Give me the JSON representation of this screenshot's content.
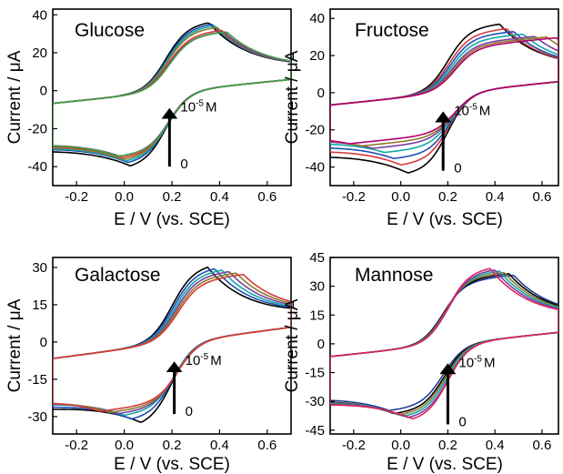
{
  "chart_data": [
    {
      "type": "line",
      "title": "Glucose",
      "xlabel": "E / V (vs. SCE)",
      "ylabel": "Current / μA",
      "xlim": [
        -0.3,
        0.7
      ],
      "ylim": [
        -50,
        43
      ],
      "xticks": [
        -0.2,
        0.0,
        0.2,
        0.4,
        0.6
      ],
      "xtick_labels": [
        "-0.2",
        "0.0",
        "0.2",
        "0.4",
        "0.6"
      ],
      "yticks": [
        -40,
        -20,
        0,
        20,
        40
      ],
      "ytick_labels": [
        "-40",
        "-20",
        "0",
        "20",
        "40"
      ],
      "annotations": {
        "top": "10",
        "top_sup": "-5",
        "top_unit": "M",
        "bottom": "0"
      },
      "arrow": {
        "x": 0.19,
        "y_from": -40,
        "y_to": -12
      },
      "legend": "none",
      "grid": false,
      "series": [
        {
          "color": "#000000",
          "e0": 0.175,
          "ipa": 36,
          "ipc": -39,
          "ea": 0.355,
          "ec": 0.025
        },
        {
          "color": "#1f4fb5",
          "e0": 0.178,
          "ipa": 35,
          "ipc": -37,
          "ea": 0.37,
          "ec": 0.015
        },
        {
          "color": "#13a8a8",
          "e0": 0.18,
          "ipa": 34,
          "ipc": -36,
          "ea": 0.38,
          "ec": 0.005
        },
        {
          "color": "#8c7a2a",
          "e0": 0.182,
          "ipa": 33,
          "ipc": -35,
          "ea": 0.39,
          "ec": -0.005
        },
        {
          "color": "#d63a3a",
          "e0": 0.185,
          "ipa": 31,
          "ipc": -34,
          "ea": 0.41,
          "ec": -0.01
        },
        {
          "color": "#7a3fa0",
          "e0": 0.187,
          "ipa": 30,
          "ipc": -33,
          "ea": 0.42,
          "ec": -0.02
        },
        {
          "color": "#3fa03f",
          "e0": 0.19,
          "ipa": 30,
          "ipc": -33,
          "ea": 0.43,
          "ec": -0.025
        }
      ]
    },
    {
      "type": "line",
      "title": "Fructose",
      "xlabel": "E / V (vs. SCE)",
      "ylabel": "Current / μA",
      "xlim": [
        -0.3,
        0.67
      ],
      "ylim": [
        -50,
        45
      ],
      "xticks": [
        -0.2,
        0.0,
        0.2,
        0.4,
        0.6
      ],
      "xtick_labels": [
        "-0.2",
        "0.0",
        "0.2",
        "0.4",
        "0.6"
      ],
      "yticks": [
        -40,
        -20,
        0,
        20,
        40
      ],
      "ytick_labels": [
        "-40",
        "-20",
        "0",
        "20",
        "40"
      ],
      "annotations": {
        "top": "10",
        "top_sup": "-5",
        "top_unit": "M",
        "bottom": "0"
      },
      "arrow": {
        "x": 0.18,
        "y_from": -42,
        "y_to": -13
      },
      "legend": "none",
      "grid": false,
      "series": [
        {
          "color": "#000000",
          "e0": 0.2,
          "ipa": 36,
          "ipc": -43,
          "ea": 0.42,
          "ec": 0.03
        },
        {
          "color": "#d63a3a",
          "e0": 0.205,
          "ipa": 33,
          "ipc": -38,
          "ea": 0.45,
          "ec": 0.0
        },
        {
          "color": "#1f4fb5",
          "e0": 0.21,
          "ipa": 31,
          "ipc": -34,
          "ea": 0.48,
          "ec": -0.03
        },
        {
          "color": "#13a8a8",
          "e0": 0.215,
          "ipa": 29,
          "ipc": -30,
          "ea": 0.52,
          "ec": -0.07
        },
        {
          "color": "#7a3fa0",
          "e0": 0.22,
          "ipa": 27,
          "ipc": -27,
          "ea": 0.57,
          "ec": -0.12
        },
        {
          "color": "#8c7a2a",
          "e0": 0.225,
          "ipa": 26,
          "ipc": -25,
          "ea": 0.62,
          "ec": -0.17
        },
        {
          "color": "#b3006b",
          "e0": 0.23,
          "ipa": 25,
          "ipc": -23,
          "ea": 0.66,
          "ec": -0.22
        }
      ]
    },
    {
      "type": "line",
      "title": "Galactose",
      "xlabel": "E / V (vs. SCE)",
      "ylabel": "Current / μA",
      "xlim": [
        -0.3,
        0.7
      ],
      "ylim": [
        -37,
        34
      ],
      "xticks": [
        -0.2,
        0.0,
        0.2,
        0.4,
        0.6
      ],
      "xtick_labels": [
        "-0.2",
        "0.0",
        "0.2",
        "0.4",
        "0.6"
      ],
      "yticks": [
        -30,
        -15,
        0,
        15,
        30
      ],
      "ytick_labels": [
        "-30",
        "-15",
        "0",
        "15",
        "30"
      ],
      "annotations": {
        "top": "10",
        "top_sup": "-5",
        "top_unit": "M",
        "bottom": "0"
      },
      "arrow": {
        "x": 0.21,
        "y_from": -29,
        "y_to": -10
      },
      "legend": "none",
      "grid": false,
      "series": [
        {
          "color": "#000000",
          "e0": 0.2,
          "ipa": 30,
          "ipc": -32,
          "ea": 0.35,
          "ec": 0.07
        },
        {
          "color": "#1f4fb5",
          "e0": 0.205,
          "ipa": 29,
          "ipc": -30,
          "ea": 0.38,
          "ec": 0.03
        },
        {
          "color": "#13a8a8",
          "e0": 0.21,
          "ipa": 28,
          "ipc": -28,
          "ea": 0.41,
          "ec": 0.0
        },
        {
          "color": "#7a3fa0",
          "e0": 0.215,
          "ipa": 27,
          "ipc": -27,
          "ea": 0.44,
          "ec": -0.03
        },
        {
          "color": "#8c7a2a",
          "e0": 0.22,
          "ipa": 26,
          "ipc": -26,
          "ea": 0.47,
          "ec": -0.06
        },
        {
          "color": "#d63a3a",
          "e0": 0.225,
          "ipa": 25,
          "ipc": -25,
          "ea": 0.5,
          "ec": -0.1
        }
      ]
    },
    {
      "type": "line",
      "title": "Mannose",
      "xlabel": "E / V (vs. SCE)",
      "ylabel": "Current / μA",
      "xlim": [
        -0.3,
        0.67
      ],
      "ylim": [
        -47,
        45
      ],
      "xticks": [
        -0.2,
        0.0,
        0.2,
        0.4,
        0.6
      ],
      "xtick_labels": [
        "-0.2",
        "0.0",
        "0.2",
        "0.4",
        "0.6"
      ],
      "yticks": [
        -45,
        -30,
        -15,
        0,
        15,
        30,
        45
      ],
      "ytick_labels": [
        "-45",
        "-30",
        "-15",
        "0",
        "15",
        "30",
        "45"
      ],
      "annotations": {
        "top": "10",
        "top_sup": "-5",
        "top_unit": "M",
        "bottom": "0"
      },
      "arrow": {
        "x": 0.2,
        "y_from": -42,
        "y_to": -13
      },
      "legend": "none",
      "grid": false,
      "series": [
        {
          "color": "#1f3f9a",
          "e0": 0.18,
          "ipa": 34,
          "ipc": -33,
          "ea": 0.48,
          "ec": -0.05
        },
        {
          "color": "#000000",
          "e0": 0.185,
          "ipa": 35,
          "ipc": -35,
          "ea": 0.46,
          "ec": -0.03
        },
        {
          "color": "#8c7a2a",
          "e0": 0.19,
          "ipa": 36,
          "ipc": -36,
          "ea": 0.44,
          "ec": -0.01
        },
        {
          "color": "#13a8a8",
          "e0": 0.195,
          "ipa": 37,
          "ipc": -37,
          "ea": 0.42,
          "ec": 0.01
        },
        {
          "color": "#7a3fa0",
          "e0": 0.2,
          "ipa": 38,
          "ipc": -38,
          "ea": 0.4,
          "ec": 0.03
        },
        {
          "color": "#e0245e",
          "e0": 0.2,
          "ipa": 39,
          "ipc": -39,
          "ea": 0.38,
          "ec": 0.05
        }
      ]
    }
  ]
}
